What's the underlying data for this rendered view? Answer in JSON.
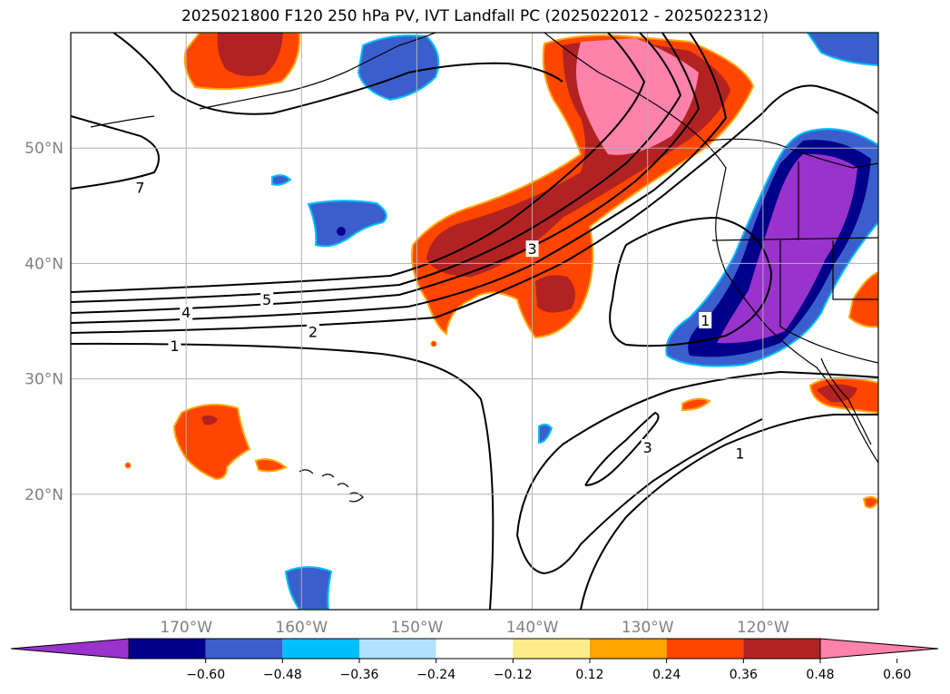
{
  "title": "2025021800 F120 250 hPa PV, IVT Landfall PC (2025022012 - 2025022312)",
  "map": {
    "lon_range": [
      -180,
      -110
    ],
    "lat_range": [
      10,
      60
    ],
    "lon_ticks": [
      {
        "lon": -170,
        "label": "170°W"
      },
      {
        "lon": -160,
        "label": "160°W"
      },
      {
        "lon": -150,
        "label": "150°W"
      },
      {
        "lon": -140,
        "label": "140°W"
      },
      {
        "lon": -130,
        "label": "130°W"
      },
      {
        "lon": -120,
        "label": "120°W"
      }
    ],
    "lat_ticks": [
      {
        "lat": 20,
        "label": "20°N"
      },
      {
        "lat": 30,
        "label": "30°N"
      },
      {
        "lat": 40,
        "label": "40°N"
      },
      {
        "lat": 50,
        "label": "50°N"
      }
    ],
    "grid": true,
    "contour_labels": [
      {
        "text": "7",
        "lon": -174,
        "lat": 46.5
      },
      {
        "text": "5",
        "lon": -163,
        "lat": 36.8
      },
      {
        "text": "4",
        "lon": -170,
        "lat": 35.7
      },
      {
        "text": "2",
        "lon": -159,
        "lat": 34.0
      },
      {
        "text": "1",
        "lon": -171,
        "lat": 32.8
      },
      {
        "text": "3",
        "lon": -140,
        "lat": 41.2
      },
      {
        "text": "1",
        "lon": -125,
        "lat": 35.0
      },
      {
        "text": "3",
        "lon": -130,
        "lat": 24.0
      },
      {
        "text": "1",
        "lon": -122,
        "lat": 23.5
      }
    ]
  },
  "colorbar": {
    "colors": [
      "#9a32cd",
      "#00008b",
      "#3a5fcd",
      "#00bfff",
      "#b0e2ff",
      "#ffffff",
      "#ffec8b",
      "#ffa500",
      "#ff4500",
      "#b22222",
      "#ff82ab"
    ],
    "ticks": [
      "−0.60",
      "−0.48",
      "−0.36",
      "−0.24",
      "−0.12",
      "0.12",
      "0.24",
      "0.36",
      "0.48",
      "0.60"
    ]
  }
}
